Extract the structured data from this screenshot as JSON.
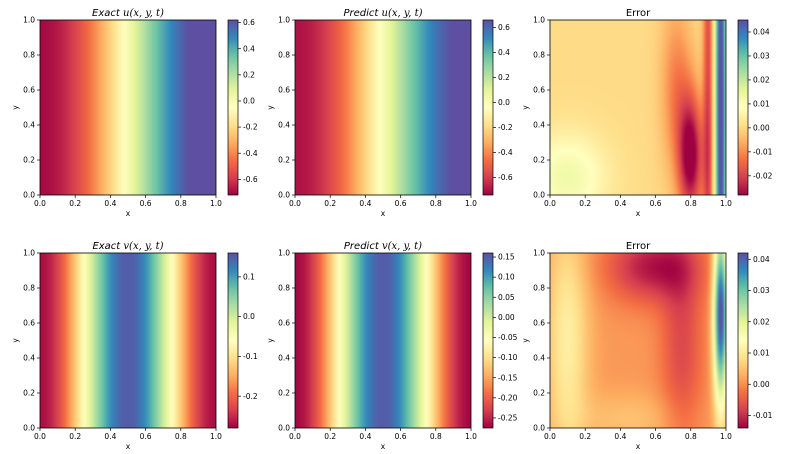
{
  "colormap": "Spectral",
  "chart_data": [
    {
      "type": "heatmap",
      "title": "Exact u(x, y, t)",
      "title_prefix": "Exact",
      "title_var": "u(x, y, t)",
      "xlabel": "x",
      "ylabel": "y",
      "xlim": [
        0,
        1
      ],
      "ylim": [
        0,
        1
      ],
      "xticks": [
        "0.0",
        "0.2",
        "0.4",
        "0.6",
        "0.8",
        "1.0"
      ],
      "yticks": [
        "0.0",
        "0.2",
        "0.4",
        "0.6",
        "0.8",
        "1.0"
      ],
      "colorbar": {
        "min": -0.72,
        "max": 0.62,
        "ticks": [
          "-0.6",
          "-0.4",
          "-0.2",
          "0.0",
          "0.2",
          "0.4",
          "0.6"
        ],
        "values": [
          -0.6,
          -0.4,
          -0.2,
          0,
          0.2,
          0.4,
          0.6
        ]
      },
      "field": {
        "model": "sin_x",
        "amplitude": 0.7
      }
    },
    {
      "type": "heatmap",
      "title": "Predict u(x, y, t)",
      "title_prefix": "Predict",
      "title_var": "u(x, y, t)",
      "xlabel": "x",
      "ylabel": "y",
      "xlim": [
        0,
        1
      ],
      "ylim": [
        0,
        1
      ],
      "xticks": [
        "0.0",
        "0.2",
        "0.4",
        "0.6",
        "0.8",
        "1.0"
      ],
      "yticks": [
        "0.0",
        "0.2",
        "0.4",
        "0.6",
        "0.8",
        "1.0"
      ],
      "colorbar": {
        "min": -0.74,
        "max": 0.66,
        "ticks": [
          "-0.6",
          "-0.4",
          "-0.2",
          "0.0",
          "0.2",
          "0.4",
          "0.6"
        ],
        "values": [
          -0.6,
          -0.4,
          -0.2,
          0,
          0.2,
          0.4,
          0.6
        ]
      },
      "field": {
        "model": "sin_x",
        "amplitude": 0.7
      }
    },
    {
      "type": "heatmap",
      "title": "Error",
      "title_prefix": "",
      "title_var": "Error",
      "xlabel": "x",
      "ylabel": "y",
      "xlim": [
        0,
        1
      ],
      "ylim": [
        0,
        1
      ],
      "xticks": [
        "0.0",
        "0.2",
        "0.4",
        "0.6",
        "0.8",
        "1.0"
      ],
      "yticks": [
        "0.0",
        "0.2",
        "0.4",
        "0.6",
        "0.8",
        "1.0"
      ],
      "colorbar": {
        "min": -0.028,
        "max": 0.045,
        "ticks": [
          "-0.02",
          "-0.01",
          "0.00",
          "0.01",
          "0.02",
          "0.03",
          "0.04"
        ],
        "values": [
          -0.02,
          -0.01,
          0,
          0.01,
          0.02,
          0.03,
          0.04
        ]
      },
      "field": {
        "model": "error_u"
      }
    },
    {
      "type": "heatmap",
      "title": "Exact v(x, y, t)",
      "title_prefix": "Exact",
      "title_var": "v(x, y, t)",
      "xlabel": "x",
      "ylabel": "y",
      "xlim": [
        0,
        1
      ],
      "ylim": [
        0,
        1
      ],
      "xticks": [
        "0.0",
        "0.2",
        "0.4",
        "0.6",
        "0.8",
        "1.0"
      ],
      "yticks": [
        "0.0",
        "0.2",
        "0.4",
        "0.6",
        "0.8",
        "1.0"
      ],
      "colorbar": {
        "min": -0.28,
        "max": 0.16,
        "ticks": [
          "-0.2",
          "-0.1",
          "0.0",
          "0.1"
        ],
        "values": [
          -0.2,
          -0.1,
          0,
          0.1
        ]
      },
      "field": {
        "model": "cos_x",
        "center": -0.06,
        "amplitude": 0.21
      }
    },
    {
      "type": "heatmap",
      "title": "Predict v(x, y, t)",
      "title_prefix": "Predict",
      "title_var": "v(x, y, t)",
      "xlabel": "x",
      "ylabel": "y",
      "xlim": [
        0,
        1
      ],
      "ylim": [
        0,
        1
      ],
      "xticks": [
        "0.0",
        "0.2",
        "0.4",
        "0.6",
        "0.8",
        "1.0"
      ],
      "yticks": [
        "0.0",
        "0.2",
        "0.4",
        "0.6",
        "0.8",
        "1.0"
      ],
      "colorbar": {
        "min": -0.275,
        "max": 0.16,
        "ticks": [
          "-0.25",
          "-0.20",
          "-0.15",
          "-0.10",
          "-0.05",
          "0.00",
          "0.05",
          "0.10",
          "0.15"
        ],
        "values": [
          -0.25,
          -0.2,
          -0.15,
          -0.1,
          -0.05,
          0,
          0.05,
          0.1,
          0.15
        ]
      },
      "field": {
        "model": "cos_x",
        "center": -0.06,
        "amplitude": 0.21
      }
    },
    {
      "type": "heatmap",
      "title": "Error",
      "title_prefix": "",
      "title_var": "Error",
      "xlabel": "x",
      "ylabel": "y",
      "xlim": [
        0,
        1
      ],
      "ylim": [
        0,
        1
      ],
      "xticks": [
        "0.0",
        "0.2",
        "0.4",
        "0.6",
        "0.8",
        "1.0"
      ],
      "yticks": [
        "0.0",
        "0.2",
        "0.4",
        "0.6",
        "0.8",
        "1.0"
      ],
      "colorbar": {
        "min": -0.014,
        "max": 0.042,
        "ticks": [
          "-0.01",
          "0.00",
          "0.01",
          "0.02",
          "0.03",
          "0.04"
        ],
        "values": [
          -0.01,
          0,
          0.01,
          0.02,
          0.03,
          0.04
        ]
      },
      "field": {
        "model": "error_v"
      }
    }
  ]
}
